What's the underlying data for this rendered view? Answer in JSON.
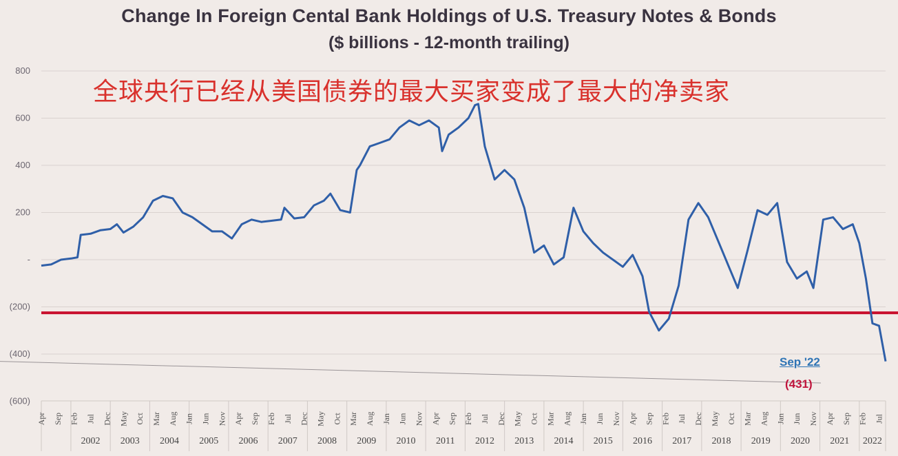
{
  "header": {
    "title": "Change In Foreign Cental Bank Holdings of U.S. Treasury Notes & Bonds",
    "subtitle": "($ billions - 12-month trailing)"
  },
  "annotation_cn": "全球央行已经从美国债券的最大买家变成了最大的净卖家",
  "callout": {
    "date": "Sep '22",
    "value": "(431)"
  },
  "colors": {
    "line": "#2f5fa8",
    "threshold": "#c8102e",
    "background": "#f1ebe8",
    "grid": "#d9d2cf",
    "annotation": "#d9312c",
    "callout_date": "#2e74b5",
    "callout_value": "#c0143c"
  },
  "chart_data": {
    "type": "line",
    "title": "Change In Foreign Cental Bank Holdings of U.S. Treasury Notes & Bonds",
    "subtitle": "($ billions - 12-month trailing)",
    "xlabel": "",
    "ylabel": "$ billions",
    "ylim": [
      -600,
      800
    ],
    "yticks": [
      800,
      600,
      400,
      200,
      0,
      -200,
      -400,
      -600
    ],
    "ytick_labels": [
      "800",
      "600",
      "400",
      "200",
      "-",
      "(200)",
      "(400)",
      "(600)"
    ],
    "grid": true,
    "legend": "none",
    "x_start": "Apr 2001",
    "x_end": "Sep 2022",
    "month_tick_labels": [
      "Apr",
      "Sep",
      "Feb",
      "Jul",
      "Dec",
      "May",
      "Oct",
      "Mar",
      "Aug",
      "Jan",
      "Jun",
      "Nov",
      "Apr",
      "Sep",
      "Feb",
      "Jul",
      "Dec",
      "May",
      "Oct",
      "Mar",
      "Aug",
      "Jan",
      "Jun",
      "Nov",
      "Apr",
      "Sep",
      "Feb",
      "Jul",
      "Dec",
      "May",
      "Oct",
      "Mar",
      "Aug",
      "Jan",
      "Jun",
      "Nov",
      "Apr",
      "Sep",
      "Feb",
      "Jul",
      "Dec",
      "May",
      "Oct",
      "Mar",
      "Aug",
      "Jan",
      "Jun",
      "Nov",
      "Apr",
      "Sep",
      "Feb",
      "Jul"
    ],
    "year_labels": [
      "2002",
      "2003",
      "2004",
      "2005",
      "2006",
      "2007",
      "2008",
      "2009",
      "2010",
      "2011",
      "2012",
      "2013",
      "2014",
      "2015",
      "2016",
      "2017",
      "2018",
      "2019",
      "2020",
      "2021",
      "2022"
    ],
    "reference_line": {
      "value": -225,
      "color": "#c8102e",
      "label": ""
    },
    "callout": {
      "x": "Sep 2022",
      "y": -431,
      "label_date": "Sep '22",
      "label_value": "(431)"
    },
    "series": [
      {
        "name": "Foreign central bank holdings change (12-mo trailing)",
        "x": [
          "2001-04",
          "2001-07",
          "2001-10",
          "2002-01",
          "2002-03",
          "2002-04",
          "2002-07",
          "2002-10",
          "2003-01",
          "2003-03",
          "2003-05",
          "2003-08",
          "2003-11",
          "2004-02",
          "2004-05",
          "2004-08",
          "2004-11",
          "2005-02",
          "2005-05",
          "2005-08",
          "2005-11",
          "2006-02",
          "2006-05",
          "2006-08",
          "2006-11",
          "2007-02",
          "2007-05",
          "2007-06",
          "2007-09",
          "2007-12",
          "2008-03",
          "2008-06",
          "2008-08",
          "2008-11",
          "2009-02",
          "2009-04",
          "2009-05",
          "2009-08",
          "2009-11",
          "2010-02",
          "2010-05",
          "2010-08",
          "2010-11",
          "2011-02",
          "2011-05",
          "2011-06",
          "2011-08",
          "2011-11",
          "2012-02",
          "2012-04",
          "2012-05",
          "2012-07",
          "2012-10",
          "2013-01",
          "2013-04",
          "2013-07",
          "2013-10",
          "2014-01",
          "2014-04",
          "2014-07",
          "2014-10",
          "2015-01",
          "2015-04",
          "2015-07",
          "2015-10",
          "2016-01",
          "2016-04",
          "2016-07",
          "2016-09",
          "2016-12",
          "2017-03",
          "2017-06",
          "2017-09",
          "2017-12",
          "2018-03",
          "2018-06",
          "2018-09",
          "2018-12",
          "2019-03",
          "2019-06",
          "2019-09",
          "2019-12",
          "2020-03",
          "2020-06",
          "2020-09",
          "2020-11",
          "2021-02",
          "2021-05",
          "2021-08",
          "2021-11",
          "2022-01",
          "2022-03",
          "2022-05",
          "2022-07",
          "2022-09"
        ],
        "values": [
          -25,
          -20,
          0,
          5,
          10,
          105,
          110,
          125,
          130,
          150,
          115,
          140,
          180,
          250,
          270,
          260,
          200,
          180,
          150,
          120,
          120,
          90,
          150,
          170,
          160,
          165,
          170,
          220,
          175,
          180,
          230,
          250,
          280,
          210,
          200,
          380,
          400,
          480,
          495,
          510,
          560,
          590,
          570,
          590,
          560,
          460,
          530,
          560,
          600,
          655,
          660,
          480,
          340,
          380,
          340,
          220,
          30,
          60,
          -20,
          10,
          220,
          120,
          70,
          30,
          0,
          -30,
          20,
          -70,
          -220,
          -300,
          -250,
          -110,
          170,
          240,
          180,
          80,
          -20,
          -120,
          40,
          210,
          190,
          240,
          -10,
          -80,
          -50,
          -120,
          170,
          180,
          130,
          150,
          70,
          -80,
          -270,
          -280,
          -431
        ]
      }
    ]
  }
}
